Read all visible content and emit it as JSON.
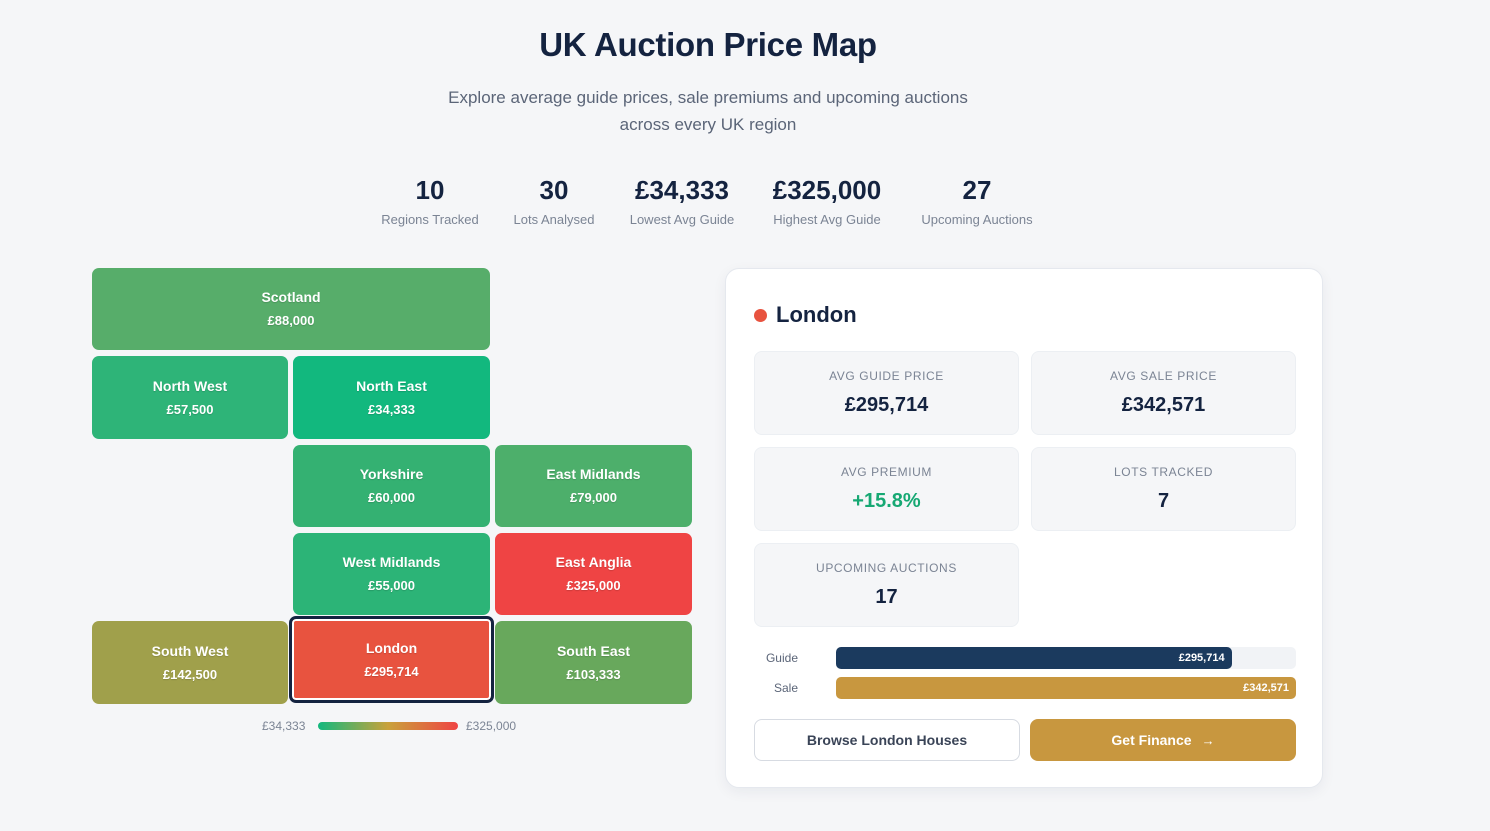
{
  "header": {
    "title": "UK Auction Price Map",
    "subtitle_line1": "Explore average guide prices, sale premiums and upcoming auctions",
    "subtitle_line2": "across every UK region"
  },
  "stats": [
    {
      "value": "10",
      "label": "Regions Tracked"
    },
    {
      "value": "30",
      "label": "Lots Analysed"
    },
    {
      "value": "£34,333",
      "label": "Lowest Avg Guide"
    },
    {
      "value": "£325,000",
      "label": "Highest Avg Guide"
    },
    {
      "value": "27",
      "label": "Upcoming Auctions"
    }
  ],
  "regions": [
    {
      "name": "Scotland",
      "price": "£88,000",
      "color": "#57ad6a"
    },
    {
      "name": "North West",
      "price": "£57,500",
      "color": "#2eb478"
    },
    {
      "name": "North East",
      "price": "£34,333",
      "color": "#12b87e"
    },
    {
      "name": "Yorkshire",
      "price": "£60,000",
      "color": "#34b172"
    },
    {
      "name": "East Midlands",
      "price": "£79,000",
      "color": "#4daf6b"
    },
    {
      "name": "West Midlands",
      "price": "£55,000",
      "color": "#2cb477"
    },
    {
      "name": "East Anglia",
      "price": "£325,000",
      "color": "#ef4444"
    },
    {
      "name": "South West",
      "price": "£142,500",
      "color": "#a0a04b"
    },
    {
      "name": "London",
      "price": "£295,714",
      "color": "#e8533f"
    },
    {
      "name": "South East",
      "price": "£103,333",
      "color": "#68a85c"
    }
  ],
  "legend": {
    "min": "£34,333",
    "max": "£325,000"
  },
  "detail": {
    "region": "London",
    "dot_color": "#e8533f",
    "metrics": [
      {
        "label": "AVG GUIDE PRICE",
        "value": "£295,714"
      },
      {
        "label": "AVG SALE PRICE",
        "value": "£342,571"
      },
      {
        "label": "AVG PREMIUM",
        "value": "+15.8%"
      },
      {
        "label": "LOTS TRACKED",
        "value": "7"
      },
      {
        "label": "UPCOMING AUCTIONS",
        "value": "17"
      }
    ],
    "bars": [
      {
        "label": "Guide",
        "value_text": "£295,714",
        "fraction": 0.86,
        "color": "#1b3a5e"
      },
      {
        "label": "Sale",
        "value_text": "£342,571",
        "fraction": 1.0,
        "color": "#c8973f"
      }
    ],
    "browse_button": "Browse London Houses",
    "finance_button": "Get Finance"
  }
}
